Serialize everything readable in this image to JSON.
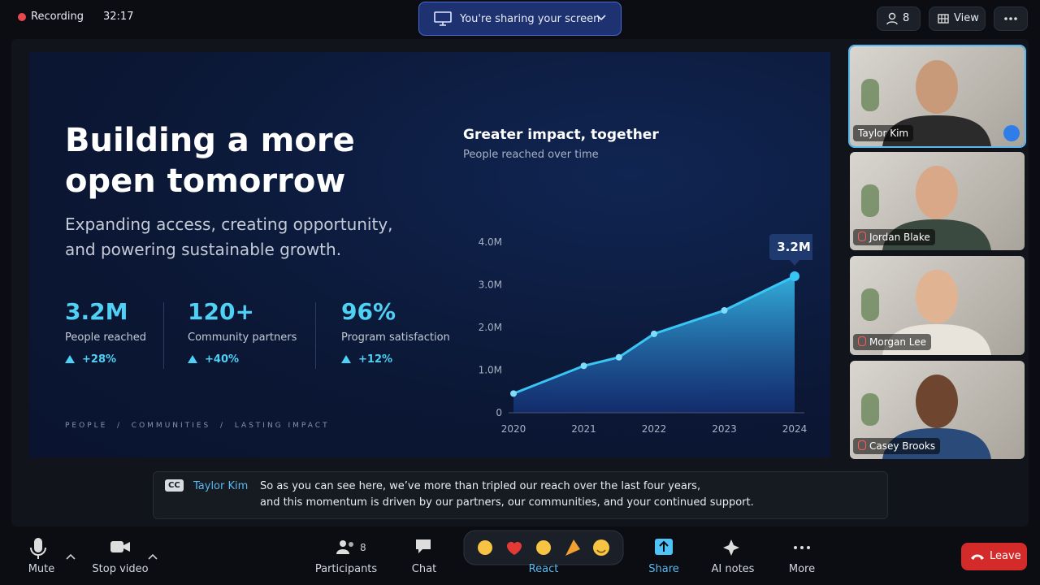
{
  "top_bar": {
    "recording": "Recording",
    "timer": "32:17",
    "sharing": "You're sharing your screen",
    "participant_count": "8",
    "view": "View"
  },
  "slide": {
    "title_line1": "Building a more",
    "title_line2": "open tomorrow",
    "subtitle_line1": "Expanding access, creating opportunity,",
    "subtitle_line2": "and powering sustainable growth.",
    "stats": [
      {
        "value": "3.2M",
        "label": "People reached",
        "change": "+28%"
      },
      {
        "value": "120+",
        "label": "Community partners",
        "change": "+40%"
      },
      {
        "value": "96%",
        "label": "Program satisfaction",
        "change": "+12%"
      }
    ],
    "footer": "PEOPLE  /  COMMUNITIES  /  LASTING IMPACT",
    "chart": {
      "type": "area",
      "title": "Greater impact, together",
      "subtitle": "People reached over time",
      "color": "#38c6f4",
      "x": [
        2020,
        2021,
        2021.5,
        2022,
        2023,
        2024
      ],
      "values": [
        0.45,
        1.1,
        1.3,
        1.85,
        2.4,
        3.2
      ],
      "value_labels": [
        null,
        null,
        null,
        null,
        null,
        "3.2M"
      ],
      "xlim": [
        2020,
        2024
      ],
      "xticks": [
        2020,
        2021,
        2022,
        2023,
        2024
      ],
      "ylim": [
        0,
        4
      ],
      "yticks": [
        0,
        {
          "value": 1,
          "label": "1.0M"
        },
        {
          "value": 2,
          "label": "2.0M"
        },
        {
          "value": 3,
          "label": "3.0M"
        },
        {
          "value": 4,
          "label": "4.0M"
        }
      ]
    }
  },
  "participants": [
    "Taylor Kim",
    "Jordan Blake",
    "Morgan Lee",
    "Casey Brooks"
  ],
  "captions": {
    "badge": "CC",
    "speaker": "Taylor Kim",
    "line1": "So as you can see here, we’ve more than tripled our reach over the last four years,",
    "line2": "and this momentum is driven by our partners, our communities, and your continued support."
  },
  "toolbar": {
    "mute": "Mute",
    "stop_video": "Stop video",
    "participants": "Participants",
    "participants_count": "8",
    "chat": "Chat",
    "react": "React",
    "share": "Share",
    "ai_notes": "AI notes",
    "more": "More",
    "leave": "Leave"
  }
}
